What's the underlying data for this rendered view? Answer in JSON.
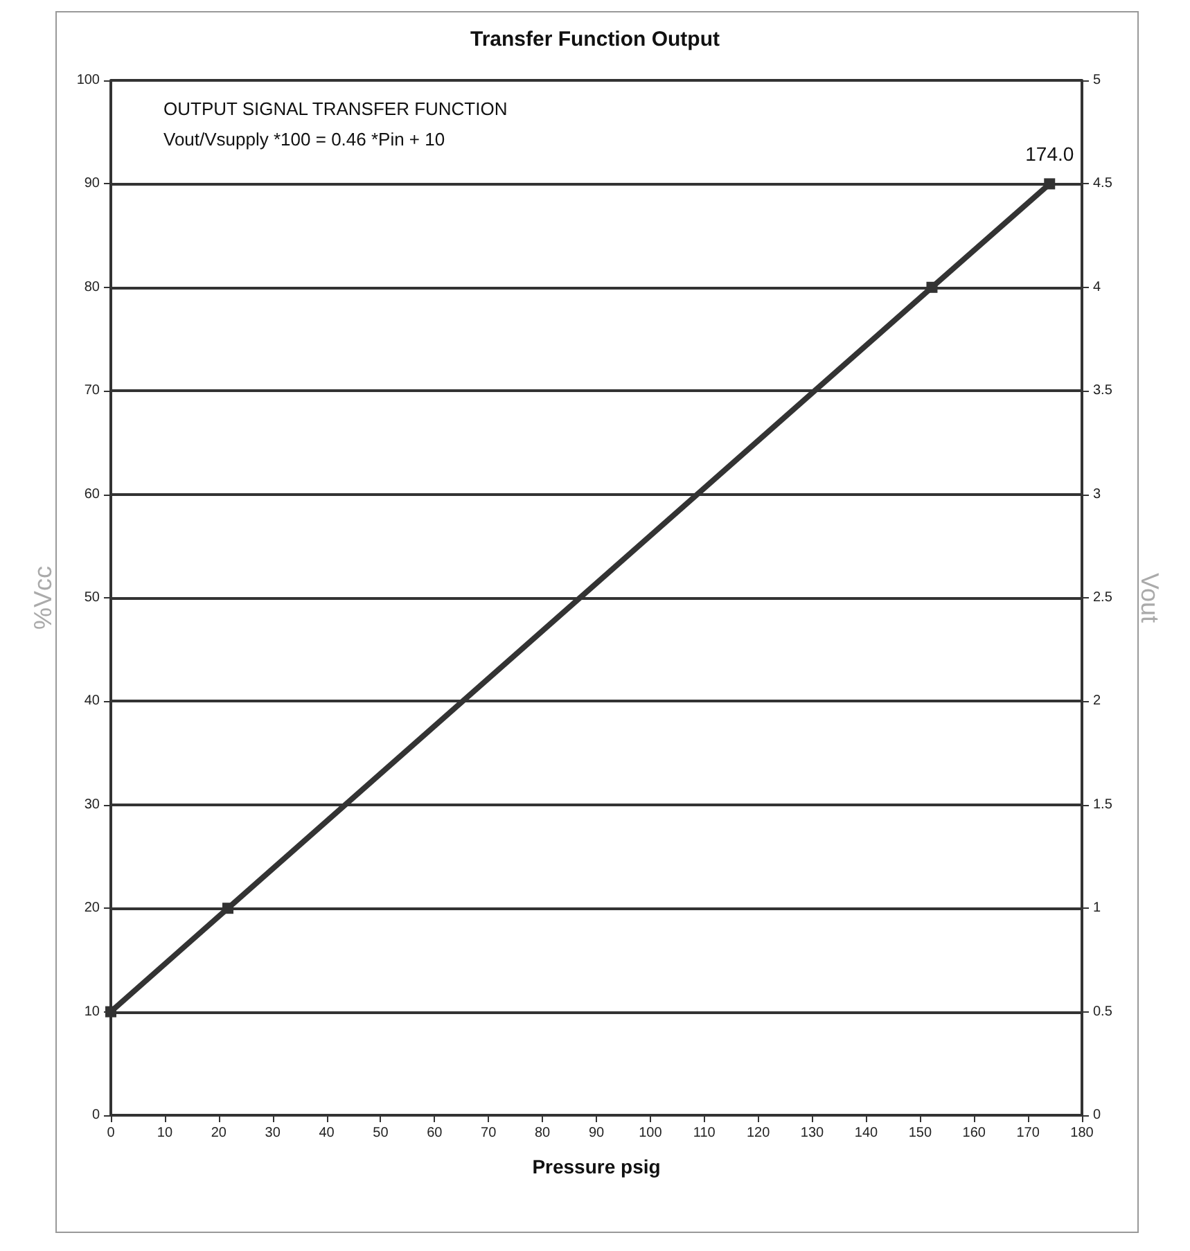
{
  "chart_data": {
    "type": "line",
    "title": "Transfer Function Output",
    "xlabel": "Pressure psig",
    "ylabel": "%Vcc",
    "y2label": "Vout",
    "annotations": [
      "OUTPUT SIGNAL TRANSFER FUNCTION",
      "Vout/Vsupply *100 = 0.46 *Pin + 10",
      {
        "text": "174.0",
        "x": 174,
        "y": 90
      }
    ],
    "series": [
      {
        "color": "#333333",
        "x": [
          0,
          21.7,
          152.2,
          174
        ],
        "values": [
          10,
          20,
          80,
          90
        ]
      }
    ],
    "xlim": [
      0,
      180
    ],
    "xticks": [
      0,
      10,
      20,
      30,
      40,
      50,
      60,
      70,
      80,
      90,
      100,
      110,
      120,
      130,
      140,
      150,
      160,
      170,
      180
    ],
    "ylim": [
      0,
      100
    ],
    "yticks": [
      0,
      10,
      20,
      30,
      40,
      50,
      60,
      70,
      80,
      90,
      100
    ],
    "y2lim": [
      0,
      5
    ],
    "y2ticks": [
      0,
      0.5,
      1,
      1.5,
      2,
      2.5,
      3,
      3.5,
      4,
      4.5,
      5
    ],
    "grid": "y",
    "marker": "square",
    "line_style": "solid"
  }
}
